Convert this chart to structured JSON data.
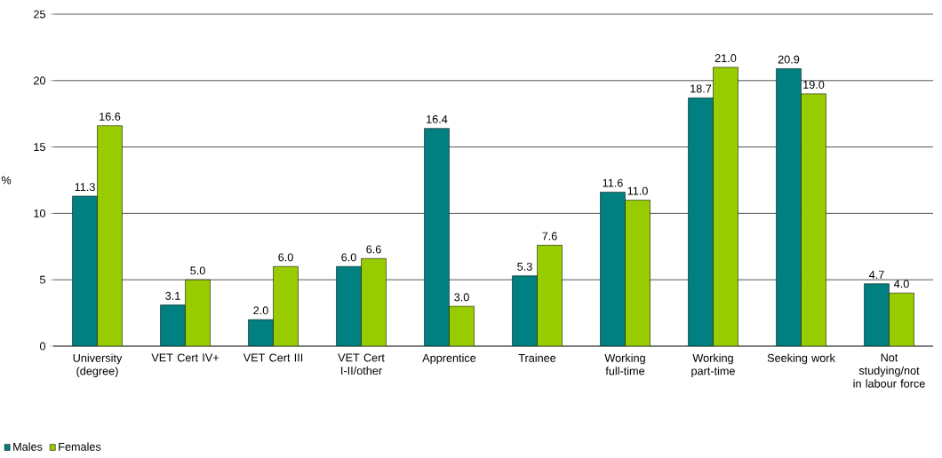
{
  "chart_data": {
    "type": "bar",
    "ylabel": "%",
    "categories": [
      "University (degree)",
      "VET Cert IV+",
      "VET Cert III",
      "VET Cert I-II/other",
      "Apprentice",
      "Trainee",
      "Working full-time",
      "Working part-time",
      "Seeking work",
      "Not studying/not in labour force"
    ],
    "series": [
      {
        "name": "Males",
        "color": "#008080",
        "values": [
          11.3,
          3.1,
          2.0,
          6.0,
          16.4,
          5.3,
          11.6,
          18.7,
          20.9,
          4.7
        ],
        "value_labels": [
          "11.3",
          "3.1",
          "2.0",
          "6.0",
          "16.4",
          "5.3",
          "11.6",
          "18.7",
          "20.9",
          "4.7"
        ]
      },
      {
        "name": "Females",
        "color": "#99cc00",
        "values": [
          16.6,
          5.0,
          6.0,
          6.6,
          3.0,
          7.6,
          11.0,
          21.0,
          19.0,
          4.0
        ],
        "value_labels": [
          "16.6",
          "5.0",
          "6.0",
          "6.6",
          "3.0",
          "7.6",
          "11.0",
          "21.0",
          "19.0",
          "4.0"
        ]
      }
    ],
    "ylim": [
      0,
      25
    ],
    "yticks": [
      0,
      5,
      10,
      15,
      20,
      25
    ],
    "grid": "y",
    "legend": "bottom left"
  }
}
